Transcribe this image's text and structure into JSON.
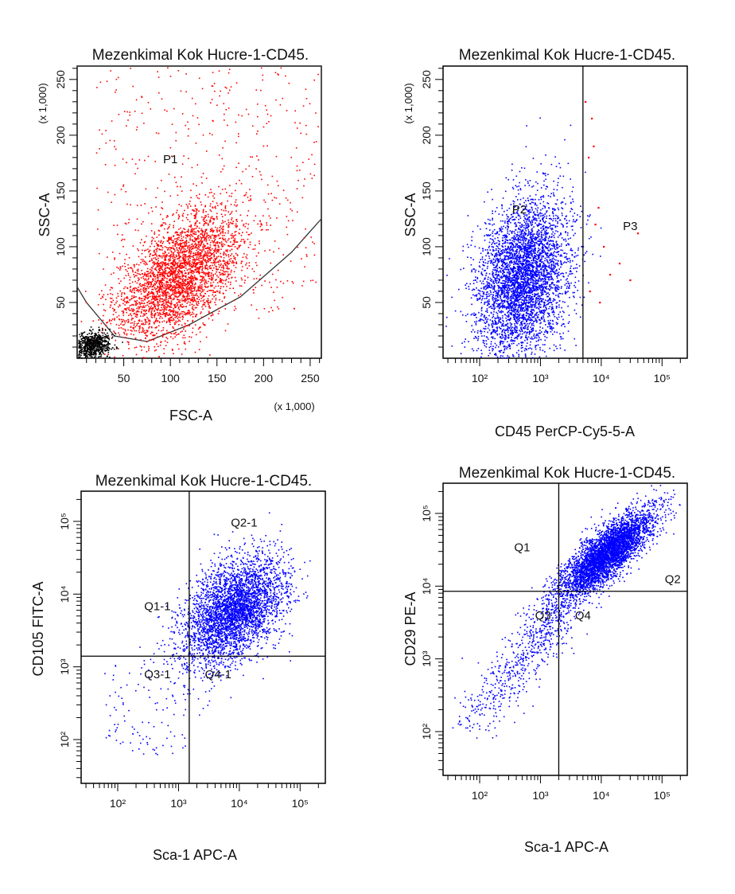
{
  "chart_data": [
    {
      "type": "scatter",
      "title": "Mezenkimal Kok Hucre-1-CD45.",
      "xlabel": "FSC-A",
      "ylabel": "SSC-A",
      "x_multiplier": "(x 1,000)",
      "y_multiplier": "(x 1,000)",
      "xscale": "linear",
      "yscale": "linear",
      "xlim": [
        0,
        262
      ],
      "ylim": [
        0,
        262
      ],
      "x_ticks": [
        "50",
        "100",
        "150",
        "200",
        "250"
      ],
      "x_tick_values": [
        50,
        100,
        150,
        200,
        250
      ],
      "y_ticks": [
        "50",
        "100",
        "150",
        "200",
        "250"
      ],
      "y_tick_values": [
        50,
        100,
        150,
        200,
        250
      ],
      "gates": [
        {
          "label": "P1",
          "x": 100,
          "y": 175
        }
      ],
      "gate_boundary": [
        [
          0,
          64
        ],
        [
          0,
          262
        ],
        [
          262,
          262
        ],
        [
          262,
          125
        ],
        [
          230,
          95
        ],
        [
          175,
          55
        ],
        [
          120,
          30
        ],
        [
          75,
          15
        ],
        [
          40,
          20
        ],
        [
          10,
          50
        ],
        [
          0,
          64
        ]
      ],
      "series": [
        {
          "color": "#ff0000",
          "cloud": {
            "center": [
              110,
              75
            ],
            "spread": [
              35,
              30
            ],
            "corr": 0.55,
            "count": 3200
          },
          "scatter": {
            "x": [
              20,
              260
            ],
            "y": [
              40,
              262
            ],
            "count": 450
          }
        },
        {
          "color": "#000000",
          "cloud": {
            "center": [
              15,
              12
            ],
            "spread": [
              10,
              6
            ],
            "corr": 0.2,
            "count": 700
          }
        }
      ]
    },
    {
      "type": "scatter",
      "title": "Mezenkimal Kok Hucre-1-CD45.",
      "xlabel": "CD45 PerCP-Cy5-5-A",
      "ylabel": "SSC-A",
      "y_multiplier": "(x 1,000)",
      "xscale": "log",
      "yscale": "linear",
      "xlim": [
        25,
        260000
      ],
      "ylim": [
        0,
        262
      ],
      "x_ticks": [
        "10²",
        "10³",
        "10⁴",
        "10⁵"
      ],
      "x_tick_values": [
        100,
        1000,
        10000,
        100000
      ],
      "y_ticks": [
        "50",
        "100",
        "150",
        "200",
        "250"
      ],
      "y_tick_values": [
        50,
        100,
        150,
        200,
        250
      ],
      "x_gate": 5000,
      "gates": [
        {
          "label": "P2",
          "x": 450,
          "y": 130
        },
        {
          "label": "P3",
          "x": 30000,
          "y": 115
        }
      ],
      "series": [
        {
          "color": "#0000ff",
          "cloud": {
            "center": [
              500,
              72
            ],
            "spread": [
              0.38,
              35
            ],
            "corr": 0.25,
            "count": 4200
          }
        },
        {
          "color": "#ff0000",
          "points": {
            "x": [
              5500,
              6200,
              7500,
              9000,
              11000,
              14000,
              9500,
              6500,
              20000,
              8000,
              7000,
              40000,
              30000
            ],
            "y": [
              230,
              180,
              190,
              135,
              100,
              75,
              50,
              60,
              85,
              120,
              215,
              112,
              70
            ]
          }
        }
      ]
    },
    {
      "type": "scatter",
      "title": "Mezenkimal Kok Hucre-1-CD45.",
      "xlabel": "Sca-1 APC-A",
      "ylabel": "CD105 FITC-A",
      "xscale": "log",
      "yscale": "log",
      "xlim": [
        25,
        260000
      ],
      "ylim": [
        25,
        260000
      ],
      "x_ticks": [
        "10²",
        "10³",
        "10⁴",
        "10⁵"
      ],
      "x_tick_values": [
        100,
        1000,
        10000,
        100000
      ],
      "y_ticks": [
        "10²",
        "10³",
        "10⁴",
        "10⁵"
      ],
      "y_tick_values": [
        100,
        1000,
        10000,
        100000
      ],
      "quad_x": 1500,
      "quad_y": 1400,
      "gates": [
        {
          "label": "Q2-1",
          "x": 12000,
          "y": 85000
        },
        {
          "label": "Q1-1",
          "x": 450,
          "y": 6000
        },
        {
          "label": "Q3-1",
          "x": 450,
          "y": 700
        },
        {
          "label": "Q4-1",
          "x": 4500,
          "y": 700
        }
      ],
      "series": [
        {
          "color": "#0000ff",
          "cloud": {
            "center": [
              8000,
              6000
            ],
            "spread": [
              0.42,
              0.38
            ],
            "corr": 0.45,
            "count": 3600
          },
          "scatter": {
            "x": [
              60,
              1500
            ],
            "y": [
              60,
              1400
            ],
            "count": 110
          }
        }
      ]
    },
    {
      "type": "scatter",
      "title": "Mezenkimal Kok Hucre-1-CD45.",
      "xlabel": "Sca-1 APC-A",
      "ylabel": "CD29 PE-A",
      "xscale": "log",
      "yscale": "log",
      "xlim": [
        25,
        260000
      ],
      "ylim": [
        25,
        260000
      ],
      "x_ticks": [
        "10²",
        "10³",
        "10⁴",
        "10⁵"
      ],
      "x_tick_values": [
        100,
        1000,
        10000,
        100000
      ],
      "y_ticks": [
        "10²",
        "10³",
        "10⁴",
        "10⁵"
      ],
      "y_tick_values": [
        100,
        1000,
        10000,
        100000
      ],
      "quad_x": 2000,
      "quad_y": 8500,
      "gates": [
        {
          "label": "Q1",
          "x": 500,
          "y": 30000
        },
        {
          "label": "Q2",
          "x": 150000,
          "y": 11000
        },
        {
          "label": "Q3",
          "x": 1100,
          "y": 3500
        },
        {
          "label": "Q4",
          "x": 5000,
          "y": 3500
        }
      ],
      "series": [
        {
          "color": "#0000ff",
          "cloud": {
            "center": [
              12000,
              28000
            ],
            "spread": [
              0.38,
              0.3
            ],
            "corr": 0.8,
            "count": 4200
          },
          "diagonal": {
            "from": [
              60,
              120
            ],
            "to": [
              2500,
              6000
            ],
            "spread": 0.18,
            "count": 650
          }
        }
      ]
    }
  ]
}
